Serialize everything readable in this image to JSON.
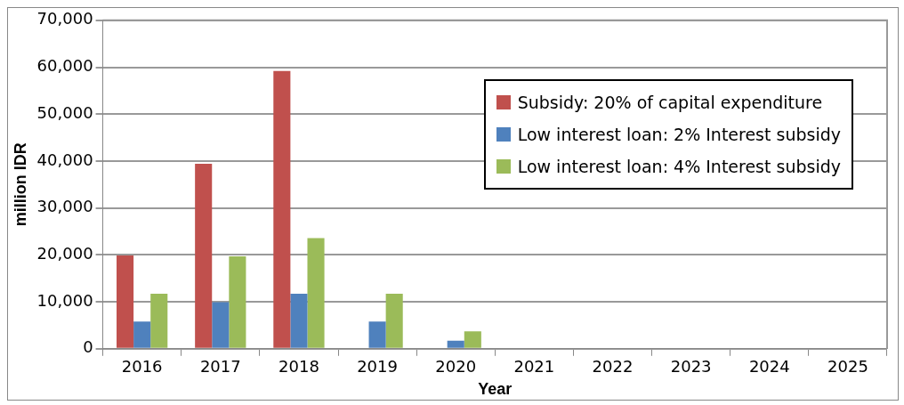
{
  "chart_data": {
    "type": "bar",
    "xlabel": "Year",
    "ylabel": "million IDR",
    "categories": [
      "2016",
      "2017",
      "2018",
      "2019",
      "2020",
      "2021",
      "2022",
      "2023",
      "2024",
      "2025"
    ],
    "series": [
      {
        "name": "Subsidy: 20% of capital expenditure",
        "color": "#c0504d",
        "values": [
          19900,
          39400,
          59200,
          0,
          0,
          0,
          0,
          0,
          0,
          0
        ]
      },
      {
        "name": "Low interest loan: 2% Interest subsidy",
        "color": "#4f81bd",
        "values": [
          5800,
          9900,
          11700,
          5800,
          1700,
          0,
          0,
          0,
          0,
          0
        ]
      },
      {
        "name": "Low interest loan: 4% Interest subsidy",
        "color": "#9bbb59",
        "values": [
          11700,
          19700,
          23600,
          11700,
          3700,
          0,
          0,
          0,
          0,
          0
        ]
      }
    ],
    "ylim": [
      0,
      70000
    ],
    "yticks": [
      0,
      {
        "value": 10000,
        "label": "10,000"
      },
      {
        "value": 20000,
        "label": "20,000"
      },
      {
        "value": 30000,
        "label": "30,000"
      },
      {
        "value": 40000,
        "label": "40,000"
      },
      {
        "value": 50000,
        "label": "50,000"
      },
      {
        "value": 60000,
        "label": "60,000"
      },
      {
        "value": 70000,
        "label": "70,000"
      }
    ],
    "grid": "y",
    "legend": "top right"
  }
}
